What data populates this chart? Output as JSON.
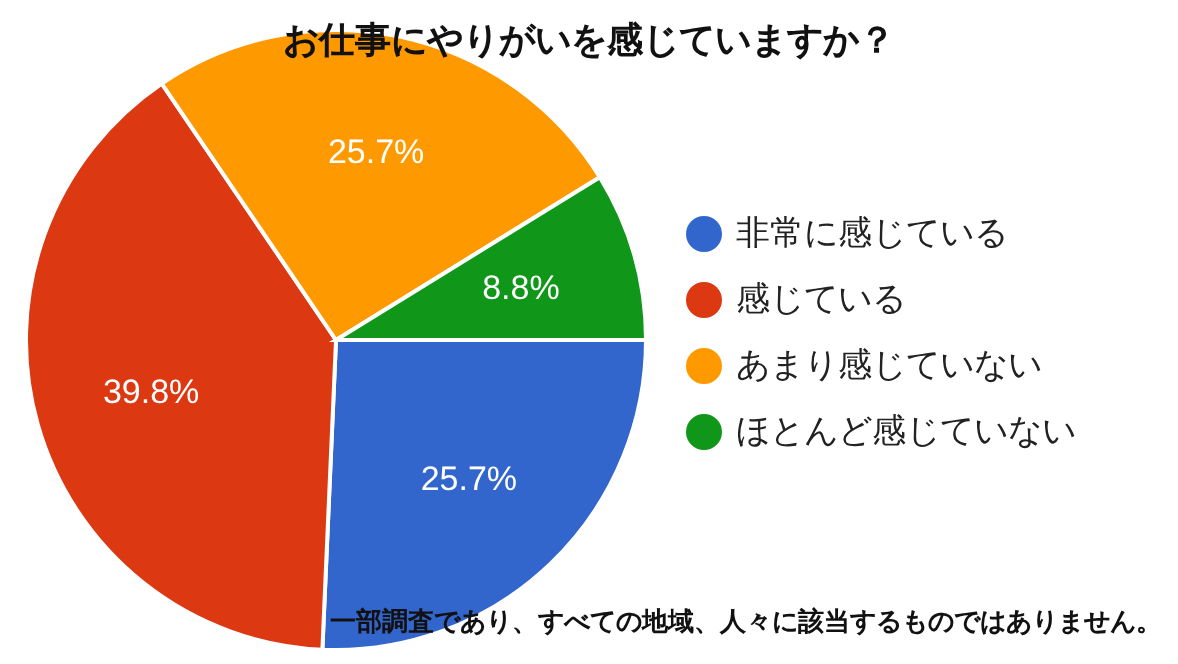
{
  "chart_data": {
    "type": "pie",
    "title": "お仕事にやりがいを感じていますか？",
    "categories": [
      "非常に感じている",
      "感じている",
      "あまり感じていない",
      "ほとんど感じていない"
    ],
    "values": [
      25.7,
      39.8,
      25.7,
      8.8
    ],
    "colors": [
      "#3366cc",
      "#dc3912",
      "#ff9900",
      "#109618"
    ],
    "value_labels": [
      "25.7%",
      "39.8%",
      "25.7%",
      "8.8%"
    ],
    "legend": "right",
    "annotations": [
      "一部調査であり、すべての地域、人々に該当するものではありません。"
    ]
  }
}
